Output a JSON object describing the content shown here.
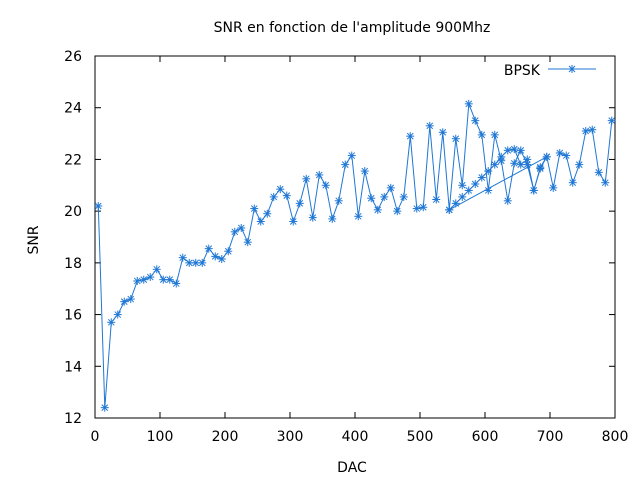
{
  "chart_data": {
    "type": "line",
    "title": "SNR en fonction de l'amplitude 900Mhz",
    "xlabel": "DAC",
    "ylabel": "SNR",
    "xlim": [
      0,
      800
    ],
    "ylim": [
      12,
      26
    ],
    "xticks": [
      0,
      100,
      200,
      300,
      400,
      500,
      600,
      700,
      800
    ],
    "yticks": [
      12,
      14,
      16,
      18,
      20,
      22,
      24,
      26
    ],
    "grid": false,
    "legend_position": "top-right",
    "series": [
      {
        "name": "BPSK",
        "color": "#1f77d4",
        "marker": "asterisk",
        "x": [
          5,
          15,
          25,
          35,
          45,
          55,
          65,
          75,
          85,
          95,
          105,
          115,
          125,
          135,
          145,
          155,
          165,
          175,
          185,
          195,
          205,
          215,
          225,
          235,
          245,
          255,
          265,
          275,
          285,
          295,
          305,
          315,
          325,
          335,
          345,
          355,
          365,
          375,
          385,
          395,
          405,
          415,
          425,
          435,
          445,
          455,
          465,
          475,
          485,
          495,
          505,
          515,
          525,
          535,
          545,
          555,
          565,
          575,
          585,
          595,
          605,
          615,
          625,
          635,
          645,
          655,
          665,
          675,
          685,
          695,
          545,
          555,
          565,
          575,
          585,
          595,
          605,
          615,
          625,
          635,
          645,
          655,
          665,
          675,
          685,
          695,
          705,
          715,
          725,
          735,
          745,
          755,
          765,
          775,
          785,
          795
        ],
        "y": [
          20.2,
          12.4,
          15.7,
          16.0,
          16.5,
          16.6,
          17.3,
          17.35,
          17.45,
          17.75,
          17.35,
          17.35,
          17.2,
          18.2,
          18.0,
          18.0,
          18.0,
          18.55,
          18.25,
          18.15,
          18.45,
          19.2,
          19.35,
          18.8,
          20.1,
          19.6,
          19.9,
          20.55,
          20.85,
          20.6,
          19.6,
          20.3,
          21.25,
          19.75,
          21.4,
          21.0,
          19.7,
          20.4,
          21.8,
          22.15,
          19.8,
          21.55,
          20.5,
          20.05,
          20.55,
          20.9,
          20.0,
          20.55,
          22.9,
          20.1,
          20.15,
          23.3,
          20.45,
          23.05,
          20.05,
          20.3,
          20.55,
          20.8,
          21.05,
          21.3,
          21.55,
          21.8,
          22.1,
          22.35,
          22.4,
          21.8,
          22.0,
          20.8,
          21.7,
          22.1,
          20.05,
          22.8,
          21.0,
          24.15,
          23.5,
          22.95,
          20.8,
          22.95,
          21.95,
          20.4,
          21.85,
          22.35,
          21.8,
          20.8,
          21.65,
          22.1,
          20.9,
          22.25,
          22.15,
          21.1,
          21.8,
          23.1,
          23.15,
          21.5,
          21.1,
          23.5
        ]
      }
    ]
  }
}
